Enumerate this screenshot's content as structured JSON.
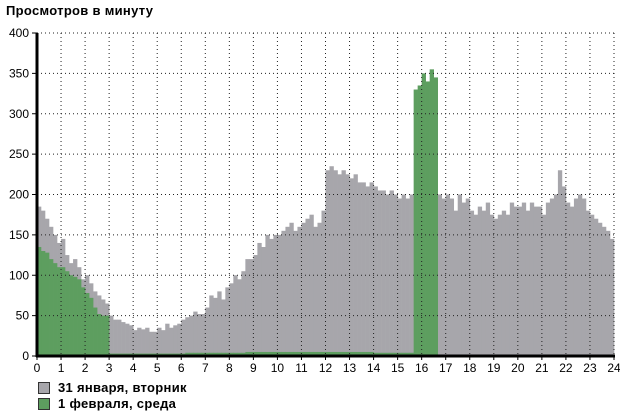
{
  "chart_data": {
    "type": "bar",
    "title": "Просмотров в минуту",
    "xlabel": "",
    "ylabel": "",
    "xlim": [
      0,
      24
    ],
    "ylim": [
      0,
      400
    ],
    "x_ticks": [
      "0",
      "1",
      "2",
      "3",
      "4",
      "5",
      "6",
      "7",
      "8",
      "9",
      "10",
      "11",
      "12",
      "13",
      "14",
      "15",
      "16",
      "17",
      "18",
      "19",
      "20",
      "21",
      "22",
      "23",
      "24"
    ],
    "y_ticks": [
      "0",
      "50",
      "100",
      "150",
      "200",
      "250",
      "300",
      "350",
      "400"
    ],
    "grid": true,
    "legend": "bottom-left",
    "bin_minutes": 10,
    "series": [
      {
        "name": "31 января, вторник",
        "color": "#a7a6ab",
        "values": [
          185,
          180,
          170,
          160,
          150,
          140,
          145,
          125,
          115,
          120,
          110,
          95,
          100,
          90,
          80,
          75,
          70,
          65,
          50,
          45,
          45,
          42,
          40,
          38,
          32,
          35,
          33,
          35,
          30,
          30,
          35,
          32,
          40,
          35,
          38,
          40,
          45,
          48,
          50,
          55,
          52,
          52,
          60,
          75,
          72,
          80,
          70,
          85,
          90,
          100,
          95,
          105,
          120,
          120,
          125,
          140,
          135,
          150,
          145,
          150,
          150,
          155,
          160,
          165,
          155,
          160,
          165,
          170,
          175,
          160,
          165,
          180,
          230,
          235,
          230,
          225,
          230,
          225,
          220,
          225,
          215,
          215,
          210,
          215,
          210,
          205,
          205,
          200,
          205,
          200,
          195,
          200,
          195,
          200,
          200,
          200,
          200,
          200,
          200,
          200,
          200,
          195,
          200,
          195,
          180,
          200,
          190,
          195,
          180,
          175,
          185,
          180,
          190,
          175,
          170,
          175,
          180,
          175,
          190,
          185,
          185,
          190,
          180,
          190,
          185,
          185,
          175,
          190,
          195,
          200,
          230,
          210,
          190,
          185,
          195,
          200,
          195,
          180,
          175,
          170,
          165,
          160,
          155,
          145
        ]
      },
      {
        "name": "1 февраля, среда",
        "color": "#5d9e5f",
        "values": [
          135,
          130,
          128,
          120,
          115,
          110,
          110,
          105,
          100,
          98,
          95,
          85,
          78,
          72,
          60,
          52,
          50,
          50,
          3,
          3,
          3,
          3,
          3,
          3,
          3,
          3,
          3,
          3,
          3,
          3,
          3,
          3,
          3,
          3,
          3,
          3,
          3,
          4,
          4,
          4,
          4,
          4,
          4,
          4,
          4,
          4,
          4,
          4,
          4,
          4,
          4,
          4,
          5,
          5,
          5,
          5,
          5,
          5,
          5,
          5,
          5,
          5,
          5,
          5,
          5,
          5,
          5,
          5,
          5,
          5,
          5,
          5,
          5,
          5,
          5,
          5,
          5,
          5,
          5,
          5,
          5,
          5,
          5,
          5,
          4,
          4,
          4,
          4,
          4,
          4,
          4,
          4,
          4,
          4,
          330,
          335,
          350,
          340,
          355,
          345,
          0,
          0,
          0,
          0,
          0,
          0,
          0,
          0,
          0,
          0,
          0,
          0,
          0,
          0,
          0,
          0,
          0,
          0,
          0,
          0,
          0,
          0,
          0,
          0,
          0,
          0,
          0,
          0,
          0,
          0,
          0,
          0,
          0,
          0,
          0,
          0,
          0,
          0,
          0,
          0,
          0,
          0,
          0,
          0
        ]
      }
    ]
  }
}
